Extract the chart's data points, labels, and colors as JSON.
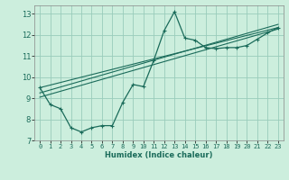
{
  "xlabel": "Humidex (Indice chaleur)",
  "bg_color": "#cceedd",
  "grid_color": "#99ccbb",
  "line_color": "#1a6b5a",
  "xlim": [
    -0.5,
    23.5
  ],
  "ylim": [
    7,
    13.4
  ],
  "xticks": [
    0,
    1,
    2,
    3,
    4,
    5,
    6,
    7,
    8,
    9,
    10,
    11,
    12,
    13,
    14,
    15,
    16,
    17,
    18,
    19,
    20,
    21,
    22,
    23
  ],
  "yticks": [
    7,
    8,
    9,
    10,
    11,
    12,
    13
  ],
  "curve1_x": [
    0,
    1,
    2,
    3,
    4,
    5,
    6,
    7,
    8,
    9,
    10,
    11,
    12,
    13,
    14,
    15,
    16,
    17,
    18,
    19,
    20,
    21,
    22,
    23
  ],
  "curve1_y": [
    9.5,
    8.7,
    8.5,
    7.6,
    7.4,
    7.6,
    7.7,
    7.7,
    8.8,
    9.65,
    9.55,
    10.8,
    12.2,
    13.1,
    11.85,
    11.75,
    11.4,
    11.35,
    11.4,
    11.4,
    11.5,
    11.8,
    12.1,
    12.35
  ],
  "line1_x": [
    0,
    23
  ],
  "line1_y": [
    9.5,
    12.35
  ],
  "line2_x": [
    0,
    23
  ],
  "line2_y": [
    9.25,
    12.5
  ],
  "line3_x": [
    0,
    23
  ],
  "line3_y": [
    9.05,
    12.28
  ]
}
